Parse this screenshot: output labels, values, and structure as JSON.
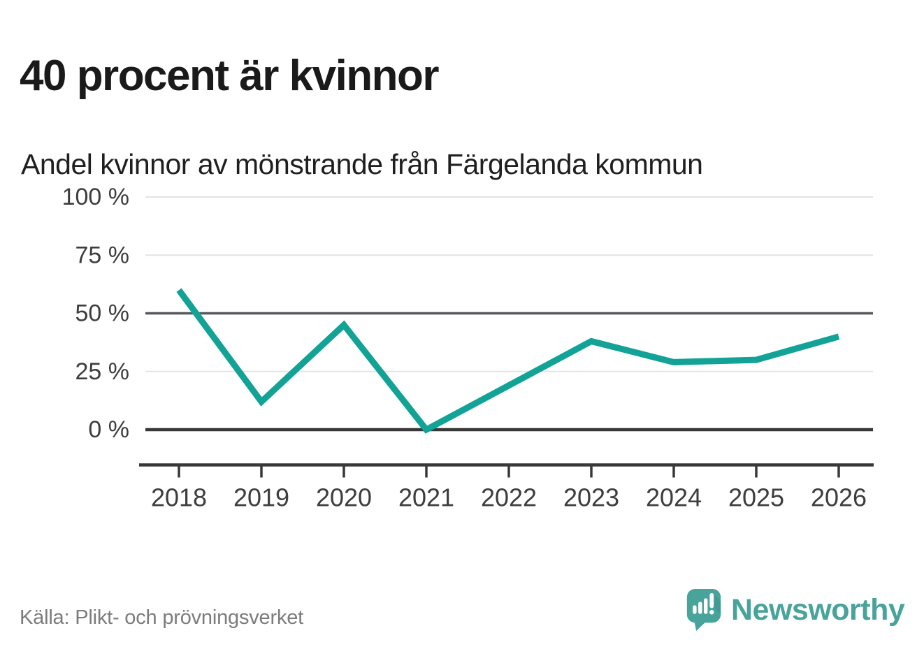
{
  "title": "40 procent är kvinnor",
  "subtitle": "Andel kvinnor av mönstrande från Färgelanda kommun",
  "source": "Källa: Plikt- och prövningsverket",
  "brand": {
    "name": "Newsworthy",
    "icon": "speech-bubble-bar-chart-icon",
    "color": "#48a39b",
    "shade_color": "#3c928a"
  },
  "colors": {
    "line": "#12a296",
    "grid_light": "#e3e3e3",
    "grid_mid": "#55585c",
    "grid_zero": "#383838",
    "axis": "#383838",
    "tick_text": "#3d3d3d",
    "title_text": "#1a1a1a",
    "source_text": "#7c7c7c",
    "background": "#ffffff"
  },
  "chart_data": {
    "type": "line",
    "title": "40 procent är kvinnor",
    "subtitle": "Andel kvinnor av mönstrande från Färgelanda kommun",
    "x": [
      2018,
      2019,
      2020,
      2021,
      2022,
      2023,
      2024,
      2025,
      2026
    ],
    "x_tick_labels": [
      "2018",
      "2019",
      "2020",
      "2021",
      "2022",
      "2023",
      "2024",
      "2025",
      "2026"
    ],
    "values": [
      60,
      12,
      45,
      0,
      19,
      38,
      29,
      30,
      40
    ],
    "unit": "%",
    "xlabel": "",
    "ylabel": "",
    "ylim": [
      0,
      100
    ],
    "yticks": [
      0,
      25,
      50,
      75,
      100
    ],
    "ytick_labels": [
      "0 %",
      "25 %",
      "50 %",
      "75 %",
      "100 %"
    ],
    "grid": "horizontal",
    "emphasized_gridlines": [
      0,
      50
    ],
    "legend": "none",
    "series_name": "Andel kvinnor",
    "line_color": "#12a296",
    "source": "Källa: Plikt- och prövningsverket"
  }
}
